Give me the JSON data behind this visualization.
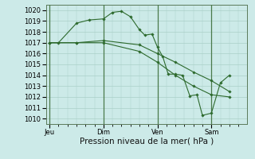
{
  "background_color": "#cceae8",
  "plot_bg_color": "#cceae8",
  "grid_color": "#aacfc8",
  "line_color": "#2d6a2d",
  "marker_color": "#2d6a2d",
  "xlabel": "Pression niveau de la mer( hPa )",
  "xlabel_fontsize": 7.5,
  "tick_fontsize": 6.0,
  "ylim": [
    1009.5,
    1020.5
  ],
  "yticks": [
    1010,
    1011,
    1012,
    1013,
    1014,
    1015,
    1016,
    1017,
    1018,
    1019,
    1020
  ],
  "xtick_labels": [
    "Jeu",
    "Dim",
    "Ven",
    "Sam"
  ],
  "xtick_positions": [
    0,
    3,
    6,
    9
  ],
  "vline_positions": [
    0,
    3,
    6,
    9
  ],
  "xlim": [
    -0.2,
    11.0
  ],
  "series": [
    {
      "x": [
        0,
        0.5,
        1.5,
        2.2,
        3.0,
        3.5,
        4.0,
        4.5,
        5.0,
        5.3,
        5.7,
        6.0,
        6.3,
        6.6,
        7.0,
        7.4,
        7.8,
        8.2,
        8.5,
        9.0,
        9.5,
        10.0
      ],
      "y": [
        1017.0,
        1017.0,
        1018.8,
        1019.1,
        1019.2,
        1019.8,
        1019.9,
        1019.4,
        1018.2,
        1017.7,
        1017.8,
        1016.6,
        1015.7,
        1014.1,
        1014.1,
        1014.0,
        1012.1,
        1012.2,
        1010.3,
        1010.5,
        1013.3,
        1014.0
      ]
    },
    {
      "x": [
        0,
        1.5,
        3.0,
        5.0,
        6.0,
        7.0,
        8.0,
        9.0,
        10.0
      ],
      "y": [
        1017.0,
        1017.0,
        1017.2,
        1016.8,
        1016.0,
        1015.2,
        1014.3,
        1013.5,
        1012.5
      ]
    },
    {
      "x": [
        0,
        1.5,
        3.0,
        5.0,
        6.0,
        7.0,
        8.0,
        9.0,
        10.0
      ],
      "y": [
        1017.0,
        1017.0,
        1017.0,
        1016.2,
        1015.2,
        1014.0,
        1013.0,
        1012.2,
        1012.0
      ]
    }
  ]
}
